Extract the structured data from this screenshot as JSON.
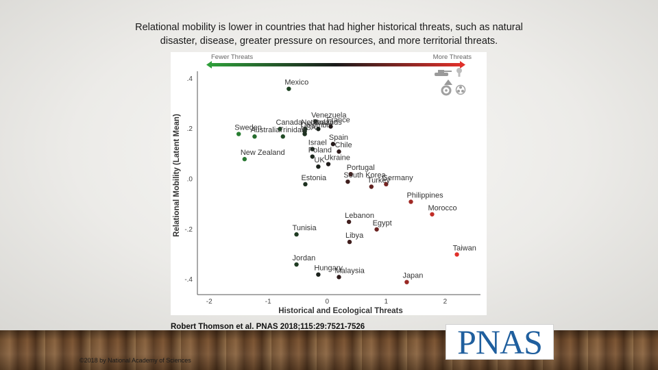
{
  "slide": {
    "title_line1": "Relational mobility is lower in countries that had higher historical threats, such as natural",
    "title_line2": "disaster, disease, greater pressure on resources, and more territorial threats.",
    "citation": "Robert Thomson et al. PNAS 2018;115:29:7521-7526",
    "copyright": "©2018 by National Academy of Sciences",
    "logo_text": "PNAS"
  },
  "legend": {
    "left": "Fewer Threats",
    "right": "More Threats",
    "gradient_colors": [
      "#2e9e3a",
      "#1a1a1a",
      "#e0302a"
    ]
  },
  "chart_data": {
    "type": "scatter",
    "title": "",
    "xlabel": "Historical and Ecological Threats",
    "ylabel": "Relational Mobility (Latent Mean)",
    "xlim": [
      -2.2,
      2.6
    ],
    "ylim": [
      -0.46,
      0.43
    ],
    "x_ticks": [
      -2,
      -1,
      0,
      1,
      2
    ],
    "x_tick_labels": [
      "-2",
      "-1",
      "0",
      "1",
      "2"
    ],
    "y_ticks": [
      0.4,
      0.2,
      0.0,
      -0.2,
      -0.4
    ],
    "y_tick_labels": [
      ".4",
      ".2",
      ".0",
      "-.2",
      "-.4"
    ],
    "grid": false,
    "color_scale": "green (fewer threats) to black to red (more threats)",
    "points": [
      {
        "label": "Mexico",
        "x": -0.65,
        "y": 0.36
      },
      {
        "label": "Venezuela",
        "x": -0.2,
        "y": 0.23
      },
      {
        "label": "Netherlands",
        "x": -0.37,
        "y": 0.2
      },
      {
        "label": "Colombia",
        "x": -0.38,
        "y": 0.19
      },
      {
        "label": "France",
        "x": 0.06,
        "y": 0.21
      },
      {
        "label": "Canada",
        "x": -0.8,
        "y": 0.2
      },
      {
        "label": "Brazil",
        "x": -0.15,
        "y": 0.2
      },
      {
        "label": "Sweden",
        "x": -1.5,
        "y": 0.18
      },
      {
        "label": "Australia",
        "x": -1.23,
        "y": 0.17
      },
      {
        "label": "Trinidad",
        "x": -0.75,
        "y": 0.17
      },
      {
        "label": "USA",
        "x": -0.38,
        "y": 0.18
      },
      {
        "label": "Spain",
        "x": 0.1,
        "y": 0.14
      },
      {
        "label": "Israel",
        "x": -0.25,
        "y": 0.12
      },
      {
        "label": "Chile",
        "x": 0.2,
        "y": 0.11
      },
      {
        "label": "Poland",
        "x": -0.25,
        "y": 0.09
      },
      {
        "label": "New Zealand",
        "x": -1.4,
        "y": 0.08
      },
      {
        "label": "Ukraine",
        "x": 0.02,
        "y": 0.06
      },
      {
        "label": "UK",
        "x": -0.15,
        "y": 0.05
      },
      {
        "label": "Portugal",
        "x": 0.4,
        "y": 0.02
      },
      {
        "label": "Germany",
        "x": 1.0,
        "y": -0.02
      },
      {
        "label": "Estonia",
        "x": -0.37,
        "y": -0.02
      },
      {
        "label": "South Korea",
        "x": 0.35,
        "y": -0.01
      },
      {
        "label": "Philippines",
        "x": 1.42,
        "y": -0.09
      },
      {
        "label": "Turkey",
        "x": 0.75,
        "y": -0.03
      },
      {
        "label": "Morocco",
        "x": 1.78,
        "y": -0.14
      },
      {
        "label": "Lebanon",
        "x": 0.37,
        "y": -0.17
      },
      {
        "label": "Egypt",
        "x": 0.84,
        "y": -0.2
      },
      {
        "label": "Tunisia",
        "x": -0.52,
        "y": -0.22
      },
      {
        "label": "Libya",
        "x": 0.38,
        "y": -0.25
      },
      {
        "label": "Taiwan",
        "x": 2.2,
        "y": -0.3
      },
      {
        "label": "Jordan",
        "x": -0.52,
        "y": -0.34
      },
      {
        "label": "Hungary",
        "x": -0.15,
        "y": -0.38
      },
      {
        "label": "Malaysia",
        "x": 0.2,
        "y": -0.39
      },
      {
        "label": "Japan",
        "x": 1.35,
        "y": -0.41
      }
    ]
  }
}
